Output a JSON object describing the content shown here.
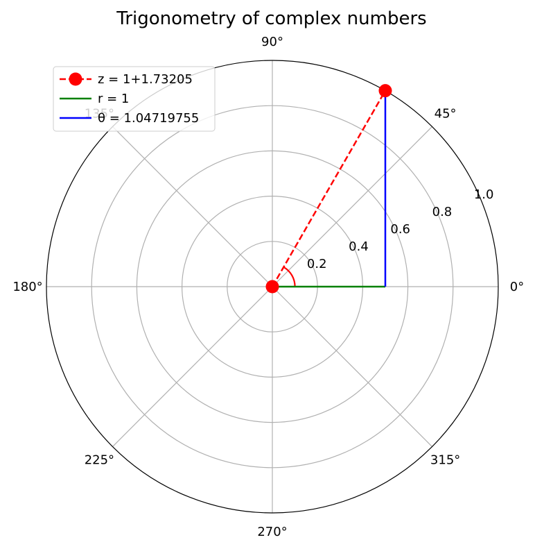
{
  "chart_data": {
    "type": "polar",
    "title": "Trigonometry of complex numbers",
    "rlim": [
      0,
      1.0
    ],
    "r_ticks": [
      "0.2",
      "0.4",
      "0.6",
      "0.8",
      "1.0"
    ],
    "r_tick_values": [
      0.2,
      0.4,
      0.6,
      0.8,
      1.0
    ],
    "theta_ticks": [
      "0°",
      "45°",
      "90°",
      "135°",
      "180°",
      "225°",
      "270°",
      "315°"
    ],
    "theta_tick_values_deg": [
      0,
      45,
      90,
      135,
      180,
      225,
      270,
      315
    ],
    "grid": true,
    "legend_position": "top-left",
    "series": [
      {
        "name": "z = 1+1.73205",
        "color": "#ff0000",
        "style": "dashed",
        "marker": "circle",
        "points": [
          {
            "theta_deg": 0,
            "r": 0.0
          },
          {
            "theta_deg": 60,
            "r": 1.0
          }
        ]
      },
      {
        "name": "r = 1",
        "color": "#008000",
        "style": "solid",
        "points": [
          {
            "theta_deg": 0,
            "r": 0.0
          },
          {
            "theta_deg": 0,
            "r": 0.5
          }
        ]
      },
      {
        "name": "θ = 1.04719755",
        "color": "#0000ff",
        "style": "solid",
        "points": [
          {
            "theta_deg": 0,
            "r": 0.5
          },
          {
            "theta_deg": 60,
            "r": 1.0
          }
        ]
      }
    ],
    "angle_arc": {
      "color": "#ff0000",
      "r": 0.1,
      "theta_start_deg": 0,
      "theta_end_deg": 60
    }
  }
}
